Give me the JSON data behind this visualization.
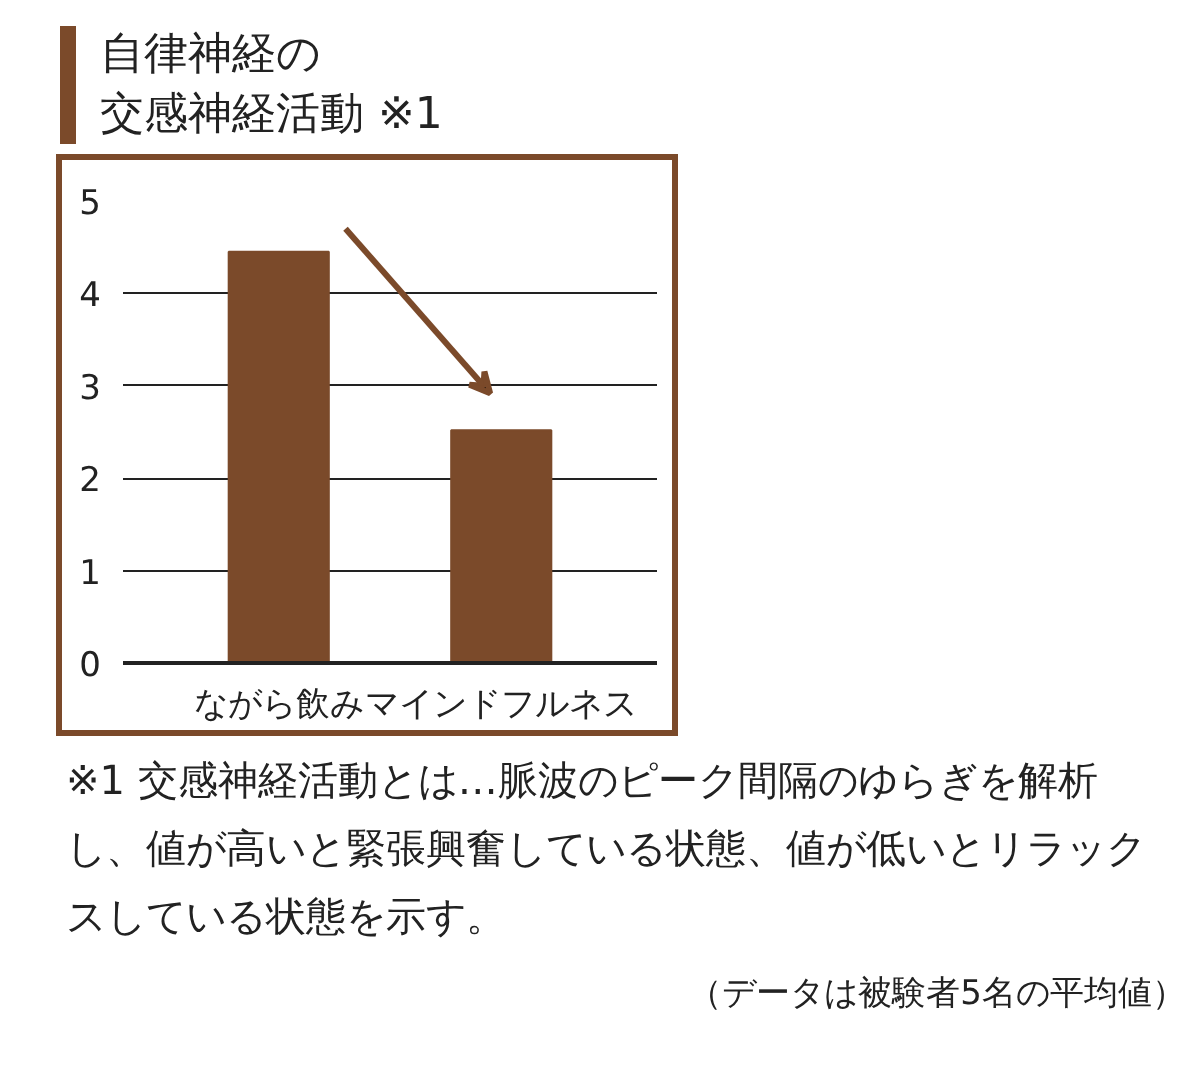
{
  "chart_data": {
    "type": "bar",
    "title": "自律神経の",
    "subtitle": "交感神経活動 ※1",
    "categories": [
      "ながら飲み",
      "マインドフルネス"
    ],
    "values": [
      4.45,
      2.52
    ],
    "color": "#7b4a2a",
    "ylim": [
      0,
      5
    ],
    "yticks": [
      0,
      1,
      2,
      3,
      4,
      5
    ],
    "grid": "y",
    "annotations": [
      "※1 交感神経活動とは…脈波のピーク間隔のゆらぎを解析し、値が高いと緊張興奮している状態、値が低いとリラックスしている状態を示す。",
      "（データは被験者5名の平均値）"
    ]
  }
}
